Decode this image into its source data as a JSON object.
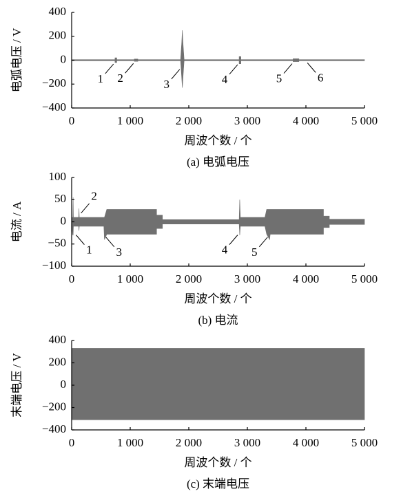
{
  "chart_data": [
    {
      "type": "envelope",
      "ylabel": "电弧电压 / V",
      "xlabel": "周波个数 / 个",
      "caption": "(a)  电弧电压",
      "color": "#707070",
      "xlim": [
        0,
        5000
      ],
      "ylim": [
        -400,
        400
      ],
      "xticks": [
        0,
        {
          "value": 1000,
          "label": "1 000"
        },
        {
          "value": 2000,
          "label": "2 000"
        },
        {
          "value": 3000,
          "label": "3 000"
        },
        {
          "value": 4000,
          "label": "4 000"
        },
        {
          "value": 5000,
          "label": "5 000"
        }
      ],
      "yticks": [
        400,
        200,
        0,
        {
          "value": -200,
          "label": "−200"
        },
        {
          "value": -400,
          "label": "−400"
        }
      ],
      "x": [
        0,
        740,
        740,
        770,
        770,
        1070,
        1070,
        1130,
        1130,
        1860,
        1880,
        1890,
        1900,
        1920,
        2860,
        2860,
        2890,
        2890,
        3780,
        3780,
        3880,
        3880,
        5000
      ],
      "upper": [
        5,
        5,
        20,
        20,
        5,
        5,
        10,
        10,
        5,
        5,
        150,
        250,
        150,
        5,
        5,
        30,
        30,
        5,
        5,
        12,
        12,
        5,
        5
      ],
      "lower": [
        -5,
        -5,
        -20,
        -20,
        -5,
        -5,
        -10,
        -10,
        -5,
        -5,
        -150,
        -230,
        -150,
        -5,
        -5,
        -30,
        -30,
        -5,
        -5,
        -12,
        -12,
        -5,
        -5
      ],
      "annotations": [
        {
          "text": "1",
          "x": 750,
          "y": -15,
          "side": "sw"
        },
        {
          "text": "2",
          "x": 1090,
          "y": -10,
          "side": "sw"
        },
        {
          "text": "3",
          "x": 1880,
          "y": -60,
          "side": "sw"
        },
        {
          "text": "4",
          "x": 2870,
          "y": -20,
          "side": "sw"
        },
        {
          "text": "5",
          "x": 3800,
          "y": -12,
          "side": "sw"
        },
        {
          "text": "6",
          "x": 3990,
          "y": -5,
          "side": "se"
        }
      ]
    },
    {
      "type": "envelope",
      "ylabel": "电流 / A",
      "xlabel": "周波个数 / 个",
      "caption": "(b)  电流",
      "color": "#707070",
      "xlim": [
        0,
        5000
      ],
      "ylim": [
        -100,
        100
      ],
      "xticks": [
        0,
        {
          "value": 1000,
          "label": "1 000"
        },
        {
          "value": 2000,
          "label": "2 000"
        },
        {
          "value": 3000,
          "label": "3 000"
        },
        {
          "value": 4000,
          "label": "4 000"
        },
        {
          "value": 5000,
          "label": "5 000"
        }
      ],
      "yticks": [
        100,
        50,
        0,
        {
          "value": -50,
          "label": "−50"
        },
        {
          "value": -100,
          "label": "−100"
        }
      ],
      "x": [
        0,
        20,
        25,
        30,
        120,
        125,
        130,
        550,
        560,
        600,
        1450,
        1450,
        1550,
        1550,
        2860,
        2870,
        2880,
        2900,
        3300,
        3330,
        3380,
        3390,
        4300,
        4300,
        4400,
        4400,
        5000
      ],
      "upper": [
        10,
        10,
        55,
        10,
        10,
        30,
        10,
        10,
        10,
        28,
        28,
        15,
        15,
        5,
        5,
        50,
        10,
        10,
        10,
        28,
        28,
        28,
        28,
        13,
        13,
        6,
        6
      ],
      "lower": [
        -10,
        -30,
        -30,
        -10,
        -10,
        -20,
        -10,
        -10,
        -40,
        -28,
        -28,
        -15,
        -15,
        -5,
        -5,
        -30,
        -10,
        -10,
        -10,
        -28,
        -40,
        -28,
        -28,
        -13,
        -13,
        -6,
        -6
      ],
      "annotations": [
        {
          "text": "1",
          "x": 40,
          "y": -25,
          "side": "se"
        },
        {
          "text": "2",
          "x": 125,
          "y": 15,
          "side": "ne"
        },
        {
          "text": "3",
          "x": 550,
          "y": -30,
          "side": "se"
        },
        {
          "text": "4",
          "x": 2870,
          "y": -25,
          "side": "sw"
        },
        {
          "text": "5",
          "x": 3380,
          "y": -30,
          "side": "sw"
        }
      ]
    },
    {
      "type": "envelope",
      "ylabel": "末端电压 / V",
      "xlabel": "周波个数 / 个",
      "caption": "(c)  末端电压",
      "color": "#707070",
      "xlim": [
        0,
        5000
      ],
      "ylim": [
        -400,
        400
      ],
      "xticks": [
        0,
        {
          "value": 1000,
          "label": "1 000"
        },
        {
          "value": 2000,
          "label": "2 000"
        },
        {
          "value": 3000,
          "label": "3 000"
        },
        {
          "value": 4000,
          "label": "4 000"
        },
        {
          "value": 5000,
          "label": "5 000"
        }
      ],
      "yticks": [
        400,
        200,
        0,
        {
          "value": -200,
          "label": "−200"
        },
        {
          "value": -400,
          "label": "−400"
        }
      ],
      "x": [
        0,
        5000
      ],
      "upper": [
        330,
        330
      ],
      "lower": [
        -310,
        -310
      ],
      "annotations": []
    }
  ]
}
